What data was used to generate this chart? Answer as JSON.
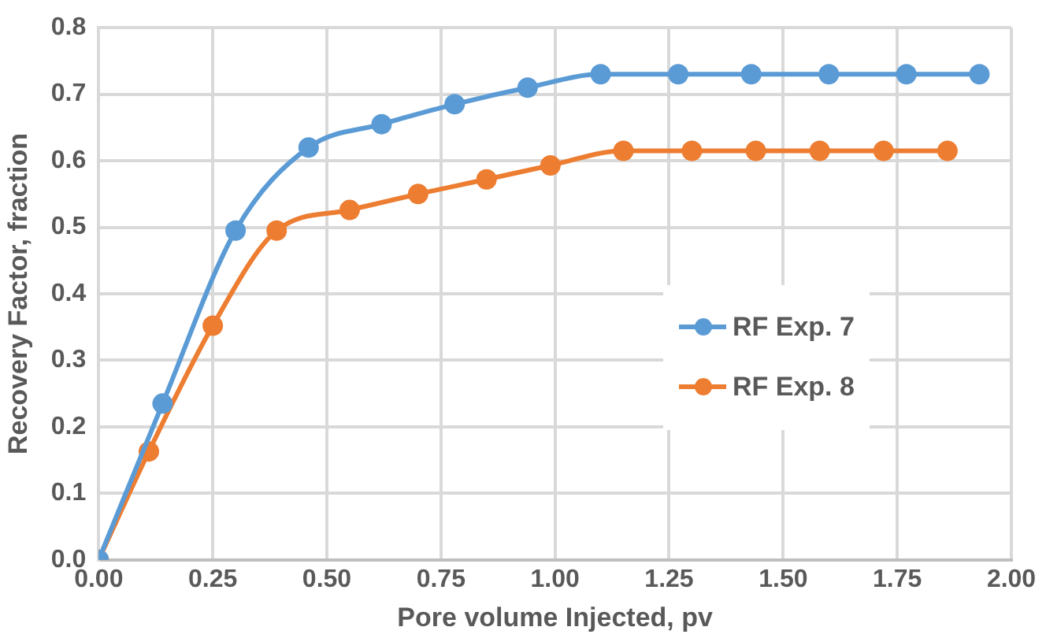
{
  "chart_data": {
    "type": "line",
    "xlabel": "Pore volume Injected, pv",
    "ylabel": "Recovery Factor, fraction",
    "xlim": [
      0,
      2
    ],
    "xticks": [
      {
        "value": 0,
        "label": "0.00"
      },
      {
        "value": 0.25,
        "label": "0.25"
      },
      {
        "value": 0.5,
        "label": "0.50"
      },
      {
        "value": 0.75,
        "label": "0.75"
      },
      {
        "value": 1,
        "label": "1.00"
      },
      {
        "value": 1.25,
        "label": "1.25"
      },
      {
        "value": 1.5,
        "label": "1.50"
      },
      {
        "value": 1.75,
        "label": "1.75"
      },
      {
        "value": 2,
        "label": "2.00"
      }
    ],
    "ylim": [
      0,
      0.8
    ],
    "yticks": [
      {
        "value": 0,
        "label": "0.0"
      },
      0.1,
      0.2,
      0.3,
      0.4,
      0.5,
      0.6,
      0.7,
      0.8
    ],
    "grid": true,
    "legend": "right",
    "marker": "circle",
    "line_style": "solid",
    "series": [
      {
        "name": "RF Exp. 7",
        "color": "#5b9bd5",
        "x": [
          0,
          0.14,
          0.3,
          0.46,
          0.62,
          0.78,
          0.94,
          1.1,
          1.27,
          1.43,
          1.6,
          1.77,
          1.93
        ],
        "values": [
          0,
          0.235,
          0.495,
          0.62,
          0.655,
          0.685,
          0.71,
          0.73,
          0.73,
          0.73,
          0.73,
          0.73,
          0.73
        ]
      },
      {
        "name": "RF Exp. 8",
        "color": "#ed7d31",
        "x": [
          0,
          0.11,
          0.25,
          0.39,
          0.55,
          0.7,
          0.85,
          0.99,
          1.15,
          1.3,
          1.44,
          1.58,
          1.72,
          1.86
        ],
        "values": [
          0,
          0.163,
          0.352,
          0.495,
          0.526,
          0.55,
          0.572,
          0.593,
          0.615,
          0.615,
          0.615,
          0.615,
          0.615,
          0.615
        ]
      }
    ]
  }
}
